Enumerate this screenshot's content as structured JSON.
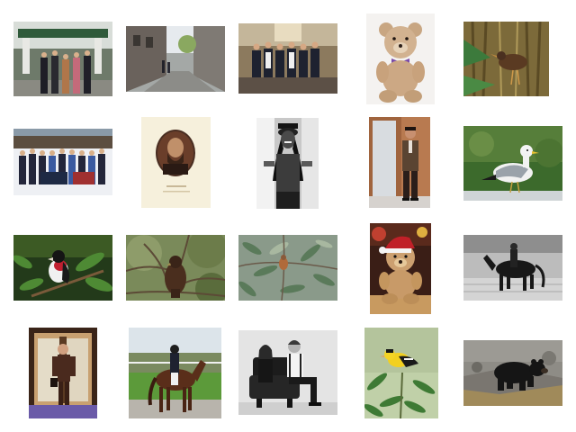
{
  "grid": {
    "rows": 4,
    "columns": 5,
    "background": "#ffffff",
    "items": [
      {
        "subject": "group-outdoor"
      },
      {
        "subject": "street-alley"
      },
      {
        "subject": "group-indoor"
      },
      {
        "subject": "teddy-bear"
      },
      {
        "subject": "bird-in-reeds"
      },
      {
        "subject": "group-snow"
      },
      {
        "subject": "vintage-portrait"
      },
      {
        "subject": "woman-smiling"
      },
      {
        "subject": "man-in-suit"
      },
      {
        "subject": "seagull"
      },
      {
        "subject": "bird-on-branch"
      },
      {
        "subject": "hawk-in-tree"
      },
      {
        "subject": "bird-in-foliage"
      },
      {
        "subject": "teddy-bear-hat"
      },
      {
        "subject": "horse-rider-water"
      },
      {
        "subject": "man-walking"
      },
      {
        "subject": "horse-rider-field"
      },
      {
        "subject": "couple-sofa"
      },
      {
        "subject": "goldfinch"
      },
      {
        "subject": "black-bear"
      }
    ]
  }
}
